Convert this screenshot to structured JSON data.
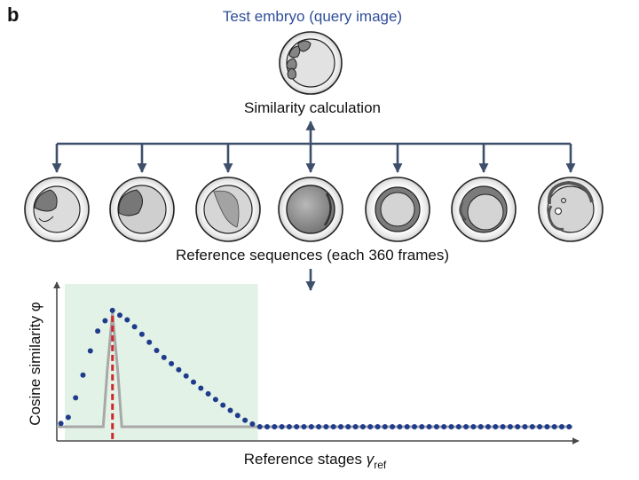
{
  "panel_label": "b",
  "query_title": "Test embryo (query image)",
  "calc_label": "Similarity calculation",
  "ref_label": "Reference sequences (each 360 frames)",
  "colors": {
    "arrow": "#3d4f6b",
    "query_title": "#2f4e9a",
    "dots": "#1f3b8c",
    "gray_curve": "#a8a8a8",
    "red_dash": "#d0262c",
    "highlight": "#e3f2e6"
  },
  "icons": {
    "query_embryo": "embryo-4cell-icon",
    "references": [
      "embryo-2cell-icon",
      "embryo-2cell-large-icon",
      "embryo-dome-icon",
      "embryo-gastrula-icon",
      "embryo-ring-icon",
      "embryo-elongating-icon",
      "embryo-larva-icon"
    ]
  },
  "chart_data": {
    "type": "scatter",
    "xlabel": "Reference stages",
    "xlabel_symbol": "γ",
    "xlabel_sub": "ref",
    "ylabel": "Cosine similarity φ",
    "ylim": [
      0,
      1
    ],
    "xlim": [
      0,
      1
    ],
    "peak_x": 0.108,
    "highlight_range": [
      0,
      0.39
    ],
    "series": [
      {
        "kind": "dotted-curve",
        "points": [
          [
            0.0,
            0.02
          ],
          [
            0.025,
            0.1
          ],
          [
            0.05,
            0.4
          ],
          [
            0.075,
            0.72
          ],
          [
            0.108,
            0.9
          ],
          [
            0.14,
            0.82
          ],
          [
            0.17,
            0.7
          ],
          [
            0.2,
            0.57
          ],
          [
            0.24,
            0.44
          ],
          [
            0.28,
            0.31
          ],
          [
            0.32,
            0.19
          ],
          [
            0.36,
            0.08
          ],
          [
            0.39,
            0.02
          ],
          [
            1.0,
            0.02
          ]
        ]
      },
      {
        "kind": "gray-curve",
        "points": [
          [
            0.0,
            0.02
          ],
          [
            0.09,
            0.02
          ],
          [
            0.098,
            0.45
          ],
          [
            0.108,
            0.88
          ],
          [
            0.118,
            0.45
          ],
          [
            0.126,
            0.02
          ],
          [
            1.0,
            0.02
          ]
        ]
      }
    ]
  }
}
